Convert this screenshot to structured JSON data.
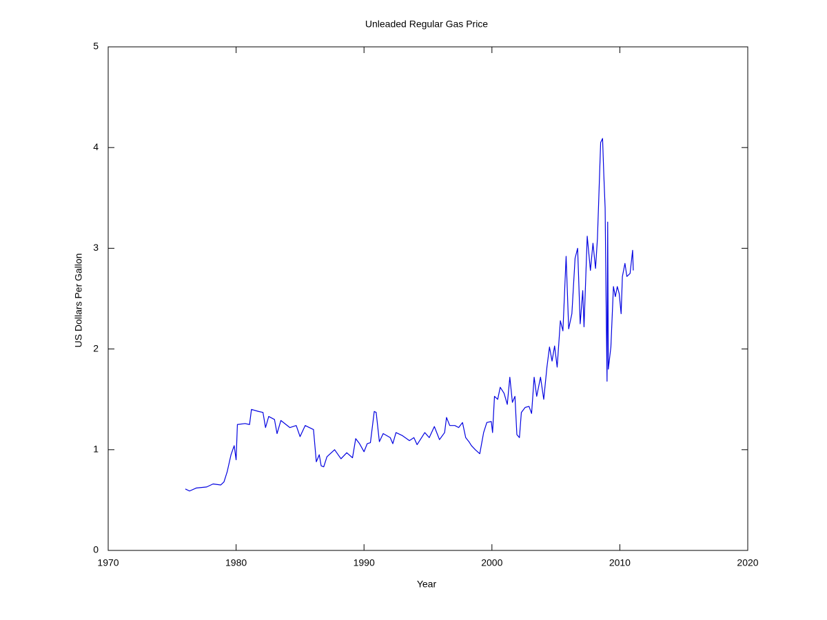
{
  "chart_data": {
    "type": "line",
    "title": "Unleaded Regular Gas Price",
    "xlabel": "Year",
    "ylabel": "US Dollars Per Gallon",
    "color": "#0000e0",
    "xlim": [
      1970,
      2020
    ],
    "xticks": [
      1970,
      1980,
      1990,
      2000,
      2010,
      2020
    ],
    "ylim": [
      0,
      5
    ],
    "yticks": [
      0,
      1,
      2,
      3,
      4,
      5
    ],
    "grid": false,
    "x": [
      1976.03,
      1976.36,
      1976.9,
      1977.7,
      1978.2,
      1978.8,
      1979.05,
      1979.3,
      1979.6,
      1979.85,
      1980.0,
      1980.1,
      1980.7,
      1981.05,
      1981.2,
      1981.75,
      1982.1,
      1982.3,
      1982.55,
      1983.0,
      1983.2,
      1983.5,
      1984.2,
      1984.7,
      1985.0,
      1985.4,
      1986.05,
      1986.27,
      1986.5,
      1986.65,
      1986.85,
      1987.1,
      1987.7,
      1988.2,
      1988.65,
      1989.1,
      1989.35,
      1989.65,
      1990.0,
      1990.25,
      1990.5,
      1990.8,
      1990.95,
      1991.2,
      1991.5,
      1992.05,
      1992.25,
      1992.5,
      1993.0,
      1993.55,
      1993.9,
      1994.15,
      1994.5,
      1994.75,
      1995.1,
      1995.5,
      1995.9,
      1996.3,
      1996.45,
      1996.7,
      1997.1,
      1997.4,
      1997.7,
      1997.95,
      1998.2,
      1998.4,
      1998.7,
      1999.05,
      1999.35,
      1999.6,
      1999.95,
      2000.05,
      2000.2,
      2000.45,
      2000.65,
      2000.95,
      2001.2,
      2001.4,
      2001.6,
      2001.8,
      2001.95,
      2002.15,
      2002.3,
      2002.6,
      2002.9,
      2003.1,
      2003.3,
      2003.5,
      2003.8,
      2004.05,
      2004.3,
      2004.5,
      2004.7,
      2004.9,
      2005.1,
      2005.35,
      2005.55,
      2005.8,
      2006.0,
      2006.25,
      2006.5,
      2006.7,
      2006.9,
      2007.1,
      2007.2,
      2007.45,
      2007.7,
      2007.9,
      2008.1,
      2008.25,
      2008.5,
      2008.65,
      2008.75,
      2008.85,
      2008.95,
      2009.0,
      2009.05,
      2009.1,
      2009.3,
      2009.5,
      2009.65,
      2009.8,
      2009.95,
      2010.1,
      2010.2,
      2010.4,
      2010.55,
      2010.8,
      2011.0,
      2011.05
    ],
    "values": [
      0.61,
      0.59,
      0.62,
      0.63,
      0.66,
      0.65,
      0.68,
      0.78,
      0.95,
      1.04,
      0.9,
      1.25,
      1.26,
      1.25,
      1.4,
      1.38,
      1.37,
      1.22,
      1.33,
      1.3,
      1.16,
      1.29,
      1.22,
      1.24,
      1.13,
      1.24,
      1.2,
      0.88,
      0.95,
      0.84,
      0.83,
      0.93,
      1.0,
      0.91,
      0.97,
      0.92,
      1.11,
      1.06,
      0.98,
      1.06,
      1.07,
      1.38,
      1.37,
      1.08,
      1.16,
      1.12,
      1.06,
      1.17,
      1.14,
      1.09,
      1.12,
      1.05,
      1.12,
      1.17,
      1.12,
      1.23,
      1.1,
      1.17,
      1.32,
      1.24,
      1.24,
      1.22,
      1.27,
      1.12,
      1.08,
      1.04,
      1.0,
      0.96,
      1.17,
      1.27,
      1.28,
      1.17,
      1.53,
      1.5,
      1.62,
      1.56,
      1.45,
      1.72,
      1.47,
      1.53,
      1.15,
      1.12,
      1.37,
      1.42,
      1.43,
      1.36,
      1.72,
      1.53,
      1.72,
      1.5,
      1.82,
      2.02,
      1.88,
      2.03,
      1.82,
      2.28,
      2.18,
      2.92,
      2.2,
      2.35,
      2.9,
      3.0,
      2.25,
      2.58,
      2.22,
      3.12,
      2.78,
      3.05,
      2.8,
      3.1,
      4.05,
      4.09,
      3.72,
      3.4,
      2.2,
      1.68,
      3.26,
      1.8,
      2.02,
      2.62,
      2.52,
      2.62,
      2.55,
      2.35,
      2.72,
      2.85,
      2.72,
      2.75,
      2.98,
      2.78
    ]
  }
}
